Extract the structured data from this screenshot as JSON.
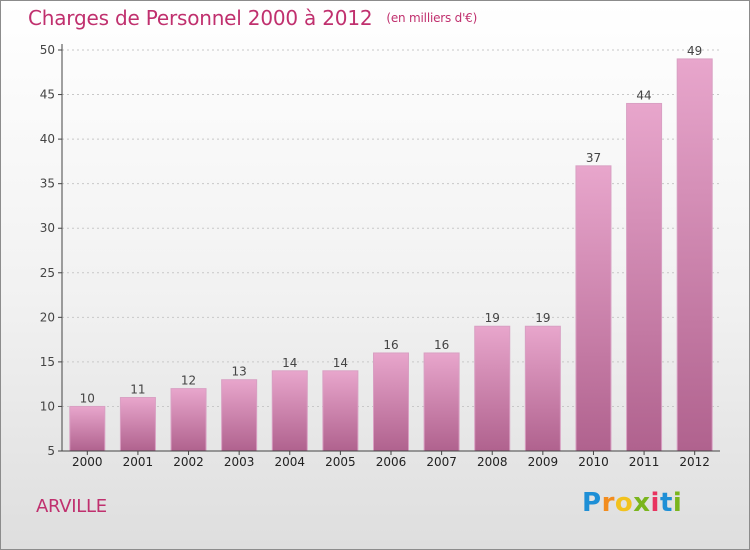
{
  "title": "Charges de Personnel 2000 à 2012",
  "subtitle": "(en milliers d'€)",
  "commune": "ARVILLE",
  "logo": {
    "letters": [
      "P",
      "r",
      "o",
      "x",
      "i",
      "t",
      "i"
    ],
    "colors": [
      "#1e8fd6",
      "#f28c1e",
      "#f2c21e",
      "#7ab51d",
      "#e8335f",
      "#1e8fd6",
      "#7ab51d"
    ]
  },
  "colors": {
    "accent": "#c0306e",
    "bar_top": "#e8a6cc",
    "bar_bottom": "#b0628e",
    "axis": "#444444",
    "grid": "#c8c8c8"
  },
  "chart_data": {
    "type": "bar",
    "categories": [
      "2000",
      "2001",
      "2002",
      "2003",
      "2004",
      "2005",
      "2006",
      "2007",
      "2008",
      "2009",
      "2010",
      "2011",
      "2012"
    ],
    "values": [
      10,
      11,
      12,
      13,
      14,
      14,
      16,
      16,
      19,
      19,
      37,
      44,
      49
    ],
    "ylim": [
      5,
      50
    ],
    "yticks": [
      5,
      10,
      15,
      20,
      25,
      30,
      35,
      40,
      45,
      50
    ],
    "grid": true
  }
}
